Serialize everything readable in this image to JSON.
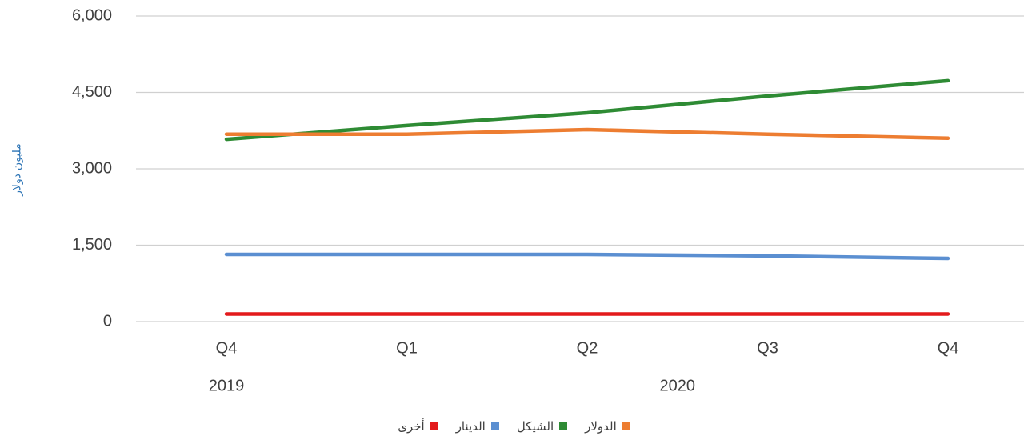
{
  "chart_data": {
    "type": "line",
    "y_label": "مليون دولار",
    "categories": [
      "Q4",
      "Q1",
      "Q2",
      "Q3",
      "Q4"
    ],
    "groups": [
      {
        "label": "2019",
        "count": 1
      },
      {
        "label": "2020",
        "count": 4
      }
    ],
    "series": [
      {
        "name": "الدولار",
        "color": "#ed7d31",
        "values": [
          3680,
          3680,
          3770,
          3680,
          3600
        ]
      },
      {
        "name": "الشيكل",
        "color": "#2e8b34",
        "values": [
          3580,
          3850,
          4100,
          4430,
          4730
        ]
      },
      {
        "name": "الدينار",
        "color": "#5b8fd1",
        "values": [
          1320,
          1320,
          1320,
          1290,
          1240
        ]
      },
      {
        "name": "أخرى",
        "color": "#e31a1c",
        "values": [
          150,
          150,
          150,
          150,
          150
        ]
      }
    ],
    "ylim": [
      0,
      6000
    ],
    "yticks": [
      0,
      {
        "value": 1500,
        "label": "1,500"
      },
      {
        "value": 3000,
        "label": "3,000"
      },
      {
        "value": 4500,
        "label": "4,500"
      },
      {
        "value": 6000,
        "label": "6,000"
      }
    ],
    "grid": true
  }
}
